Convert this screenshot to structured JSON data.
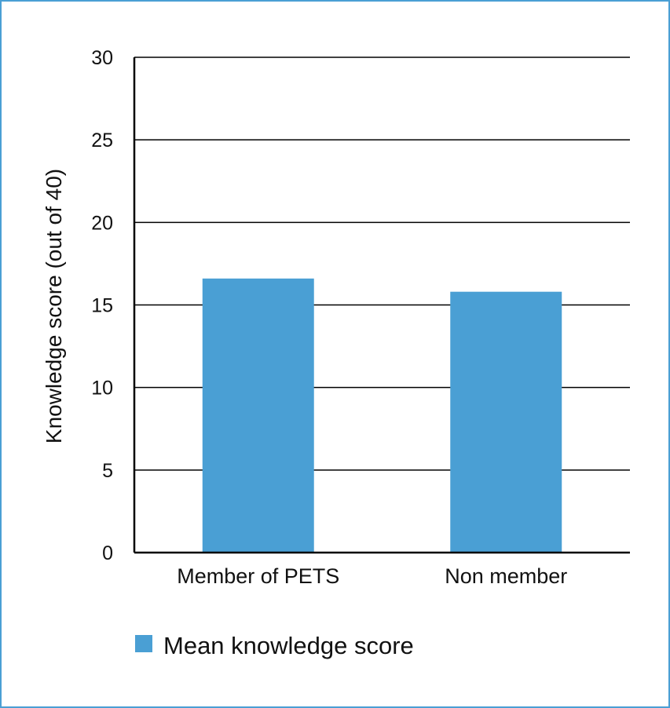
{
  "chart_data": {
    "type": "bar",
    "categories": [
      "Member of PETS",
      "Non member"
    ],
    "series": [
      {
        "name": "Mean knowledge score",
        "values": [
          16.6,
          15.8
        ]
      }
    ],
    "title": "",
    "xlabel": "",
    "ylabel": "Knowledge score (out of 40)",
    "ylim": [
      0,
      30
    ],
    "yticks": [
      0,
      5,
      10,
      15,
      20,
      25,
      30
    ],
    "grid": true,
    "legend_position": "bottom-left",
    "colors": {
      "bar": "#4a9fd4",
      "frame": "#4a9fd4",
      "grid": "#000000"
    }
  }
}
